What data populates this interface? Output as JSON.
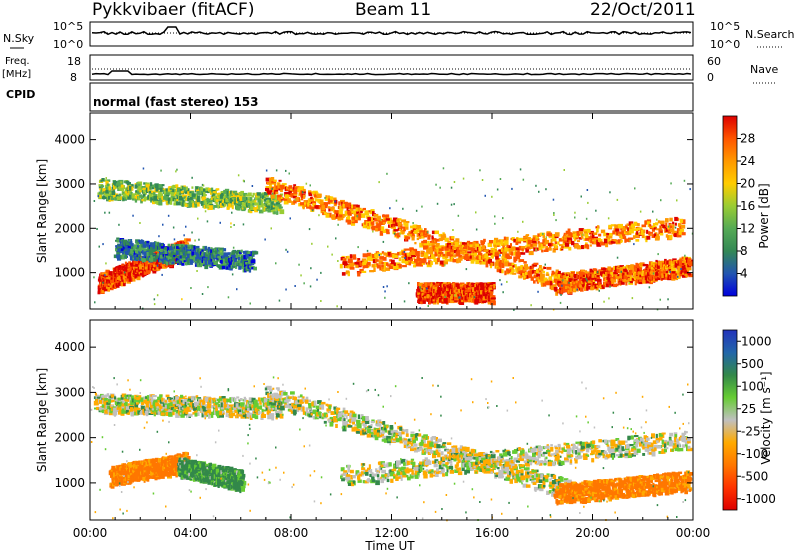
{
  "header": {
    "title": "Pykkvibaer (fitACF)",
    "beam": "Beam 11",
    "date": "22/Oct/2011"
  },
  "summary_panels": {
    "nsky_label": "N.Sky",
    "nsearch_label": "N.Search",
    "freq_label": "Freq.",
    "freq_unit": "[MHz]",
    "nave_label": "Nave",
    "cpid_label": "CPID",
    "cpid_text": "normal (fast stereo) 153",
    "noise_left_ticks": [
      "10^5",
      "10^0"
    ],
    "noise_right_ticks": [
      "10^5",
      "10^0"
    ],
    "freq_left_ticks": [
      "18",
      "8"
    ],
    "nave_right_ticks": [
      "60",
      "0"
    ]
  },
  "colors": {
    "power_scale": [
      "#0000dd",
      "#2255b0",
      "#338855",
      "#55aa55",
      "#99cc33",
      "#ffcc00",
      "#ff9900",
      "#ff5500",
      "#dd0000"
    ],
    "velocity_scale": [
      "#2233bb",
      "#2266aa",
      "#33884a",
      "#66cc33",
      "#c0c0c0",
      "#ffaa00",
      "#ff7700",
      "#ff3300",
      "#dd0000"
    ]
  },
  "chart_data": [
    {
      "type": "heatmap",
      "name": "power",
      "ylabel": "Slant Range [km]",
      "xlabel": "Time UT",
      "x_ticks": [
        "00:00",
        "04:00",
        "08:00",
        "12:00",
        "16:00",
        "20:00",
        "00:00"
      ],
      "x_range_hours": [
        0,
        24
      ],
      "y_ticks": [
        1000,
        2000,
        3000,
        4000
      ],
      "ylim": [
        180,
        4600
      ],
      "colorbar": {
        "label": "Power [dB]",
        "ticks": [
          4,
          8,
          12,
          16,
          20,
          24,
          28
        ],
        "range": [
          0,
          32
        ]
      },
      "echo_bands": [
        {
          "t": [
            0.3,
            3.8
          ],
          "r0": [
            700,
            1500
          ],
          "value": 28
        },
        {
          "t": [
            0.3,
            7.5
          ],
          "r0": [
            2850,
            2500
          ],
          "value": 14
        },
        {
          "t": [
            1.0,
            6.5
          ],
          "r0": [
            1500,
            1200
          ],
          "value": 8
        },
        {
          "t": [
            7.0,
            19.0
          ],
          "r0": [
            2900,
            700
          ],
          "value": 24
        },
        {
          "t": [
            10.0,
            23.5
          ],
          "r0": [
            1100,
            2000
          ],
          "value": 24
        },
        {
          "t": [
            18.5,
            24.0
          ],
          "r0": [
            700,
            1100
          ],
          "value": 26
        },
        {
          "t": [
            13.0,
            16.0
          ],
          "r0": [
            500,
            500
          ],
          "value": 28
        }
      ]
    },
    {
      "type": "heatmap",
      "name": "velocity",
      "ylabel": "Slant Range [km]",
      "xlabel": "Time UT",
      "x_ticks": [
        "00:00",
        "04:00",
        "08:00",
        "12:00",
        "16:00",
        "20:00",
        "00:00"
      ],
      "x_range_hours": [
        0,
        24
      ],
      "y_ticks": [
        1000,
        2000,
        3000,
        4000
      ],
      "ylim": [
        180,
        4600
      ],
      "colorbar": {
        "label": "Velocity [m s⁻¹]",
        "ticks": [
          "1000",
          "500",
          "100",
          "25",
          "-25",
          "-100",
          "-500",
          "-1000"
        ]
      },
      "echo_bands": [
        {
          "t": [
            0.2,
            7.5
          ],
          "r0": [
            2700,
            2600
          ],
          "value": 0
        },
        {
          "t": [
            7.0,
            19.0
          ],
          "r0": [
            2900,
            800
          ],
          "value": 0
        },
        {
          "t": [
            10.0,
            24.0
          ],
          "r0": [
            1100,
            1900
          ],
          "value": 0
        },
        {
          "t": [
            0.8,
            3.8
          ],
          "r0": [
            1100,
            1400
          ],
          "value": -150
        },
        {
          "t": [
            3.5,
            6.0
          ],
          "r0": [
            1300,
            1000
          ],
          "value": 100
        },
        {
          "t": [
            18.5,
            24.0
          ],
          "r0": [
            700,
            1000
          ],
          "value": -150
        }
      ]
    }
  ]
}
